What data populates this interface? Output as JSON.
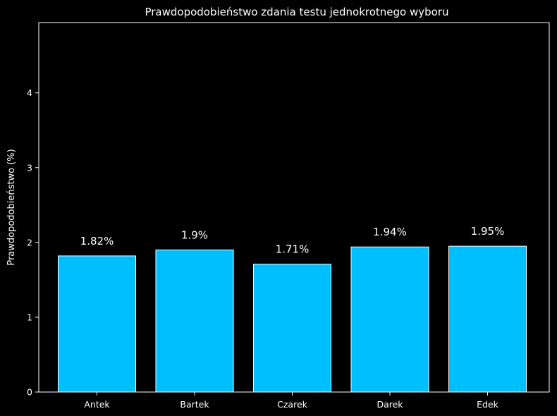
{
  "chart_data": {
    "type": "bar",
    "title": "Prawdopodobieństwo zdania testu jednokrotnego wyboru",
    "xlabel": "",
    "ylabel": "Prawdopodobieństwo (%)",
    "categories": [
      "Antek",
      "Bartek",
      "Czarek",
      "Darek",
      "Edek"
    ],
    "values": [
      1.82,
      1.9,
      1.71,
      1.94,
      1.95
    ],
    "value_labels": [
      "1.82%",
      "1.9%",
      "1.71%",
      "1.94%",
      "1.95%"
    ],
    "yticks": [
      0,
      1,
      2,
      3,
      4
    ],
    "ytick_labels": [
      "0",
      "1",
      "2",
      "3",
      "4"
    ],
    "ylim": [
      0,
      4.94
    ],
    "grid": false,
    "legend": "none",
    "colors": {
      "background": "#000000",
      "bar_fill": "#00bfff",
      "bar_edge": "#ffffff",
      "axis": "#ffffff",
      "text": "#ffffff"
    }
  }
}
